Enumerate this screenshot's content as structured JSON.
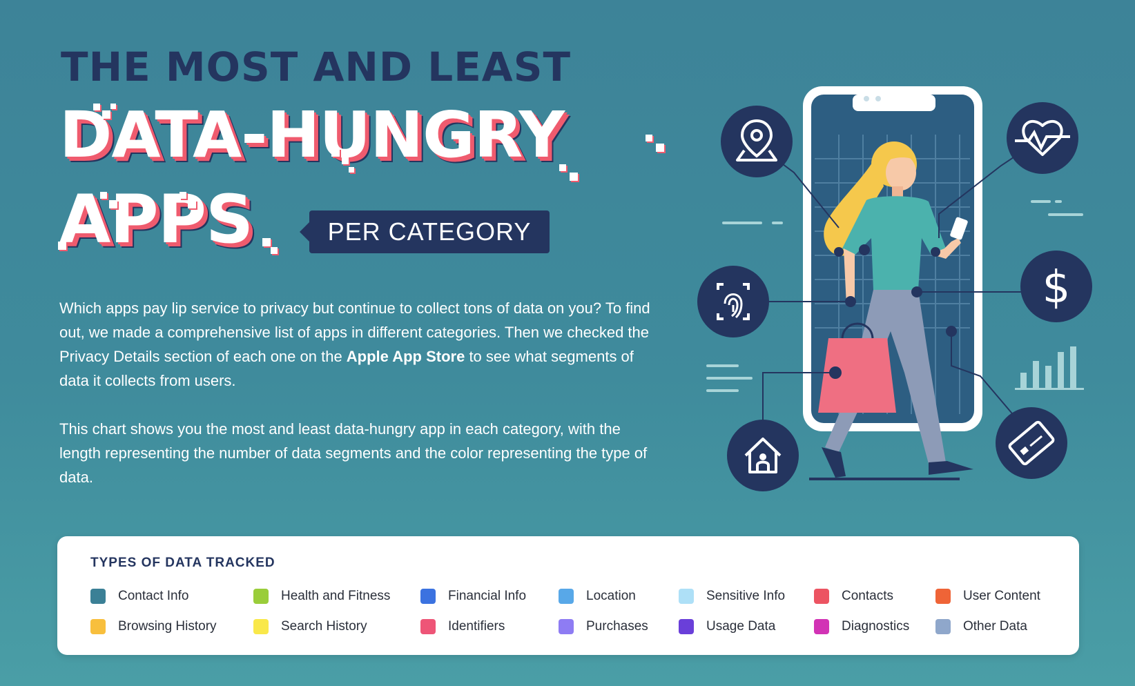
{
  "header": {
    "line1": "THE MOST AND LEAST",
    "line2": "DATA-HUNGRY",
    "line3": "APPS",
    "tag": "PER CATEGORY"
  },
  "intro": {
    "p1_a": "Which apps pay lip service to privacy but continue to collect tons of data on you? To find out, we made a comprehensive list of apps in different categories. Then we checked the Privacy Details section of each one on the ",
    "p1_bold": "Apple App Store",
    "p1_b": " to see what segments of data it collects from users.",
    "p2": "This chart shows you the most and least data-hungry app in each category, with the length representing the number of data segments and the color representing the type of data."
  },
  "legend": {
    "title": "TYPES OF DATA TRACKED",
    "items": [
      {
        "label": "Contact Info",
        "color": "#3b8096"
      },
      {
        "label": "Health and Fitness",
        "color": "#9acd3a"
      },
      {
        "label": "Financial Info",
        "color": "#3b72e0"
      },
      {
        "label": "Location",
        "color": "#58a8e8"
      },
      {
        "label": "Sensitive Info",
        "color": "#aee0f7"
      },
      {
        "label": "Contacts",
        "color": "#ec5462"
      },
      {
        "label": "User Content",
        "color": "#ef6437"
      },
      {
        "label": "Browsing History",
        "color": "#f8bf3d"
      },
      {
        "label": "Search History",
        "color": "#f9e84a"
      },
      {
        "label": "Identifiers",
        "color": "#ee5577"
      },
      {
        "label": "Purchases",
        "color": "#8e7cf3"
      },
      {
        "label": "Usage Data",
        "color": "#6a3fd9"
      },
      {
        "label": "Diagnostics",
        "color": "#d233b5"
      },
      {
        "label": "Other Data",
        "color": "#8fa7cb"
      }
    ]
  },
  "illustration": {
    "icons": [
      "location-pin-icon",
      "heart-rate-icon",
      "fingerprint-icon",
      "dollar-icon",
      "home-icon",
      "credit-card-icon"
    ],
    "colors": {
      "navy": "#24355f",
      "coral": "#ef5b6e",
      "bag": "#ef6f82",
      "hair": "#f5c84c",
      "shirt": "#4bb2ad"
    },
    "dollar_symbol": "$"
  }
}
